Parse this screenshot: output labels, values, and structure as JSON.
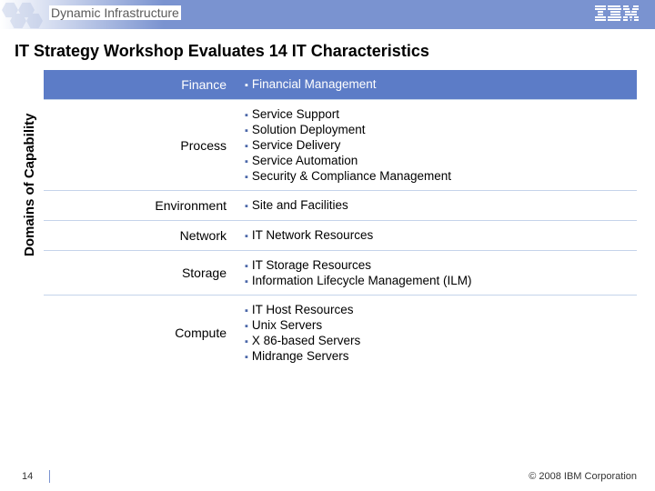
{
  "header": {
    "title": "Dynamic Infrastructure",
    "logo_name": "ibm-logo"
  },
  "main_title": "IT Strategy Workshop Evaluates 14 IT Characteristics",
  "vertical_label": "Domains of Capability",
  "colors": {
    "header_gradient_end": "#7a93d0",
    "highlight_row_bg": "#5c7cc7",
    "row_border": "#c5d3ea",
    "bullet": "#4a66a8"
  },
  "rows": [
    {
      "category": "Finance",
      "highlight": true,
      "items": [
        "Financial Management"
      ]
    },
    {
      "category": "Process",
      "highlight": false,
      "items": [
        "Service Support",
        "Solution Deployment",
        "Service Delivery",
        "Service Automation",
        "Security & Compliance Management"
      ]
    },
    {
      "category": "Environment",
      "highlight": false,
      "items": [
        "Site and Facilities"
      ]
    },
    {
      "category": "Network",
      "highlight": false,
      "items": [
        "IT Network Resources"
      ]
    },
    {
      "category": "Storage",
      "highlight": false,
      "items": [
        "IT Storage Resources",
        "Information Lifecycle Management (ILM)"
      ]
    },
    {
      "category": "Compute",
      "highlight": false,
      "items": [
        "IT Host Resources",
        "Unix Servers",
        "X 86-based Servers",
        "Midrange Servers"
      ]
    }
  ],
  "footer": {
    "page_number": "14",
    "copyright": "© 2008 IBM Corporation"
  }
}
